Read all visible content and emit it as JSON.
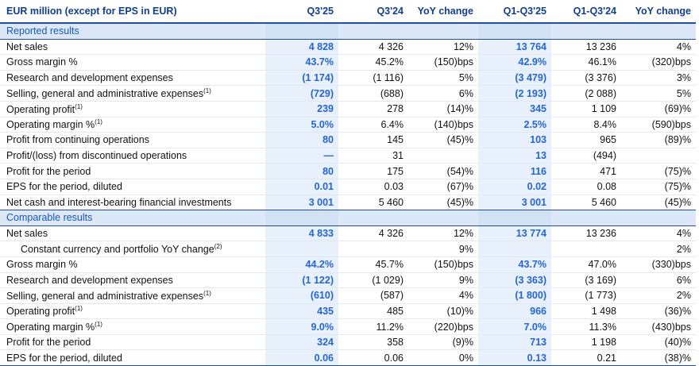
{
  "header": {
    "title": "EUR million (except for EPS in EUR)",
    "columns": [
      "Q3'25",
      "Q3'24",
      "YoY change",
      "Q1-Q3'25",
      "Q1-Q3'24",
      "YoY change"
    ]
  },
  "sections": [
    {
      "title": "Reported results",
      "rows": [
        {
          "label": "Net sales",
          "values": [
            "4 828",
            "4 326",
            "12%",
            "13 764",
            "13 236",
            "4%"
          ]
        },
        {
          "label": "Gross margin %",
          "values": [
            "43.7%",
            "45.2%",
            "(150)bps",
            "42.9%",
            "46.1%",
            "(320)bps"
          ]
        },
        {
          "label": "Research and development expenses",
          "values": [
            "(1 174)",
            "(1 116)",
            "5%",
            "(3 479)",
            "(3 376)",
            "3%"
          ]
        },
        {
          "label": "Selling, general and administrative expenses",
          "note": "(1)",
          "values": [
            "(729)",
            "(688)",
            "6%",
            "(2 193)",
            "(2 088)",
            "5%"
          ]
        },
        {
          "label": "Operating profit",
          "note": "(1)",
          "values": [
            "239",
            "278",
            "(14)%",
            "345",
            "1 109",
            "(69)%"
          ]
        },
        {
          "label": "Operating margin %",
          "note": "(1)",
          "values": [
            "5.0%",
            "6.4%",
            "(140)bps",
            "2.5%",
            "8.4%",
            "(590)bps"
          ]
        },
        {
          "label": "Profit from continuing operations",
          "values": [
            "80",
            "145",
            "(45)%",
            "103",
            "965",
            "(89)%"
          ]
        },
        {
          "label": "Profit/(loss) from discontinued operations",
          "values": [
            "—",
            "31",
            null,
            "13",
            "(494)",
            null
          ]
        },
        {
          "label": "Profit for the period",
          "values": [
            "80",
            "175",
            "(54)%",
            "116",
            "471",
            "(75)%"
          ]
        },
        {
          "label": "EPS for the period, diluted",
          "values": [
            "0.01",
            "0.03",
            "(67)%",
            "0.02",
            "0.08",
            "(75)%"
          ]
        },
        {
          "label": "Net cash and interest-bearing financial investments",
          "values": [
            "3 001",
            "5 460",
            "(45)%",
            "3 001",
            "5 460",
            "(45)%"
          ]
        }
      ]
    },
    {
      "title": "Comparable results",
      "rows": [
        {
          "label": "Net sales",
          "values": [
            "4 833",
            "4 326",
            "12%",
            "13 774",
            "13 236",
            "4%"
          ]
        },
        {
          "label": "Constant currency and portfolio YoY change",
          "note": "(2)",
          "indent": true,
          "values": [
            null,
            null,
            "9%",
            null,
            null,
            "2%"
          ]
        },
        {
          "label": "Gross margin %",
          "values": [
            "44.2%",
            "45.7%",
            "(150)bps",
            "43.7%",
            "47.0%",
            "(330)bps"
          ]
        },
        {
          "label": "Research and development expenses",
          "values": [
            "(1 122)",
            "(1 029)",
            "9%",
            "(3 363)",
            "(3 169)",
            "6%"
          ]
        },
        {
          "label": "Selling, general and administrative expenses",
          "note": "(1)",
          "values": [
            "(610)",
            "(587)",
            "4%",
            "(1 800)",
            "(1 773)",
            "2%"
          ]
        },
        {
          "label": "Operating profit",
          "note": "(1)",
          "values": [
            "435",
            "485",
            "(10)%",
            "966",
            "1 498",
            "(36)%"
          ]
        },
        {
          "label": "Operating margin %",
          "note": "(1)",
          "values": [
            "9.0%",
            "11.2%",
            "(220)bps",
            "7.0%",
            "11.3%",
            "(430)bps"
          ]
        },
        {
          "label": "Profit for the period",
          "values": [
            "324",
            "358",
            "(9)%",
            "713",
            "1 198",
            "(40)%"
          ]
        },
        {
          "label": "EPS for the period, diluted",
          "values": [
            "0.06",
            "0.06",
            "0%",
            "0.13",
            "0.21",
            "(38)%"
          ]
        }
      ]
    }
  ]
}
